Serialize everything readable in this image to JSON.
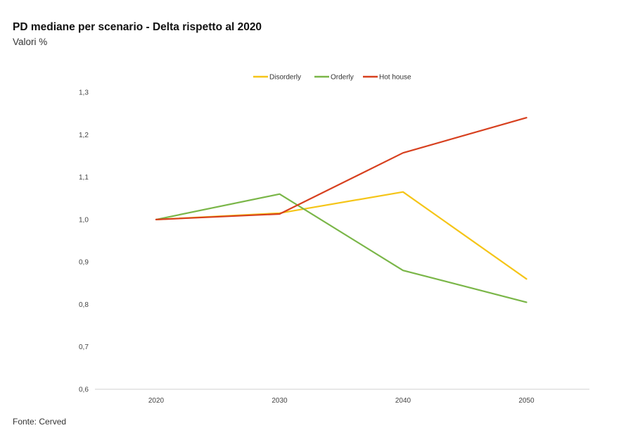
{
  "header": {
    "title": "PD mediane per scenario - Delta rispetto al 2020",
    "subtitle": "Valori %"
  },
  "footer": {
    "source": "Fonte: Cerved"
  },
  "chart_data": {
    "type": "line",
    "title": "PD mediane per scenario - Delta rispetto al 2020",
    "subtitle": "Valori %",
    "x": [
      "2020",
      "2030",
      "2040",
      "2050"
    ],
    "ylim": [
      0.6,
      1.3
    ],
    "y_ticks": [
      "0,6",
      "0,7",
      "0,8",
      "0,9",
      "1,0",
      "1,1",
      "1,2",
      "1,3"
    ],
    "grid": false,
    "legend_position": "top",
    "series": [
      {
        "name": "Disorderly",
        "color": "#f5c518",
        "values": [
          1.0,
          1.015,
          1.065,
          0.86
        ]
      },
      {
        "name": "Orderly",
        "color": "#7ab648",
        "values": [
          1.0,
          1.06,
          0.88,
          0.805
        ]
      },
      {
        "name": "Hot house",
        "color": "#d7401f",
        "values": [
          1.0,
          1.013,
          1.157,
          1.24
        ]
      }
    ]
  }
}
